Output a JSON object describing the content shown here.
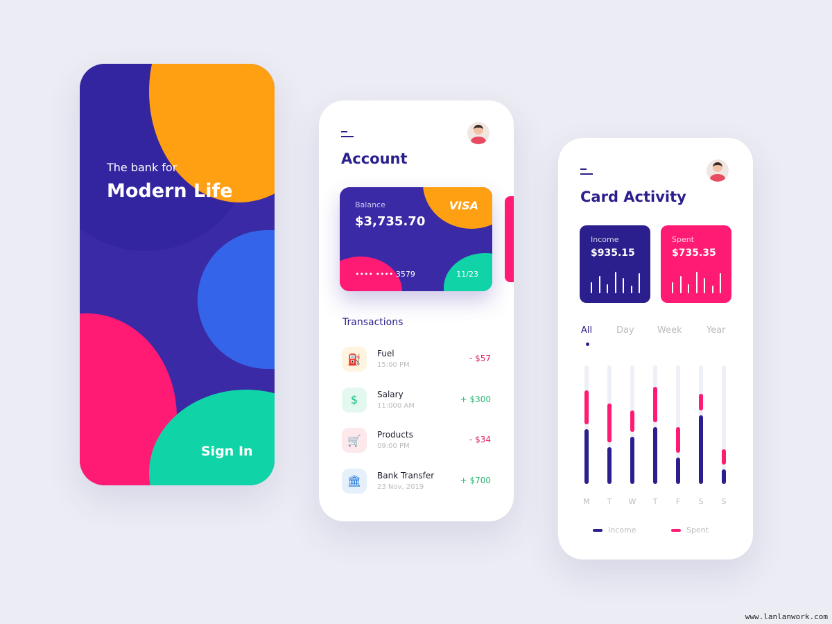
{
  "welcome": {
    "subtitle": "The bank for",
    "title": "Modern Life",
    "sign_in": "Sign In"
  },
  "account": {
    "title": "Account",
    "card": {
      "balance_label": "Balance",
      "balance": "$3,735.70",
      "brand": "VISA",
      "number": "•••• •••• 3579",
      "expiry": "11/23"
    },
    "transactions_title": "Transactions",
    "transactions": [
      {
        "name": "Fuel",
        "time": "15:00 PM",
        "amount": "- $57",
        "icon": "fuel-icon",
        "type": "debit"
      },
      {
        "name": "Salary",
        "time": "11:000 AM",
        "amount": "+ $300",
        "icon": "salary-icon",
        "type": "credit"
      },
      {
        "name": "Products",
        "time": "09:00 PM",
        "amount": "- $34",
        "icon": "cart-icon",
        "type": "debit"
      },
      {
        "name": "Bank Transfer",
        "time": "23 Nov, 2019",
        "amount": "+ $700",
        "icon": "bank-icon",
        "type": "credit"
      }
    ]
  },
  "activity": {
    "title": "Card Activity",
    "income_label": "Income",
    "income": "$935.15",
    "spent_label": "Spent",
    "spent": "$735.35",
    "tabs": [
      "All",
      "Day",
      "Week",
      "Year"
    ],
    "active_tab": "All"
  },
  "colors": {
    "primary": "#2a1f8c",
    "pink": "#ff1a73",
    "orange": "#ffa012",
    "teal": "#10d4a8",
    "blue": "#3464ea",
    "credit": "#2bb673",
    "debit": "#e0225e"
  },
  "chart_data": {
    "type": "bar",
    "stacked": true,
    "categories": [
      "M",
      "T",
      "W",
      "T",
      "F",
      "S",
      "S"
    ],
    "series": [
      {
        "name": "Income",
        "values": [
          46,
          31,
          40,
          48,
          22,
          58,
          12
        ]
      },
      {
        "name": "Spent",
        "values": [
          29,
          33,
          18,
          30,
          22,
          14,
          13
        ]
      }
    ],
    "ylim": [
      0,
      100
    ],
    "legend": "bottom"
  },
  "watermark": "www.lanlanwork.com"
}
